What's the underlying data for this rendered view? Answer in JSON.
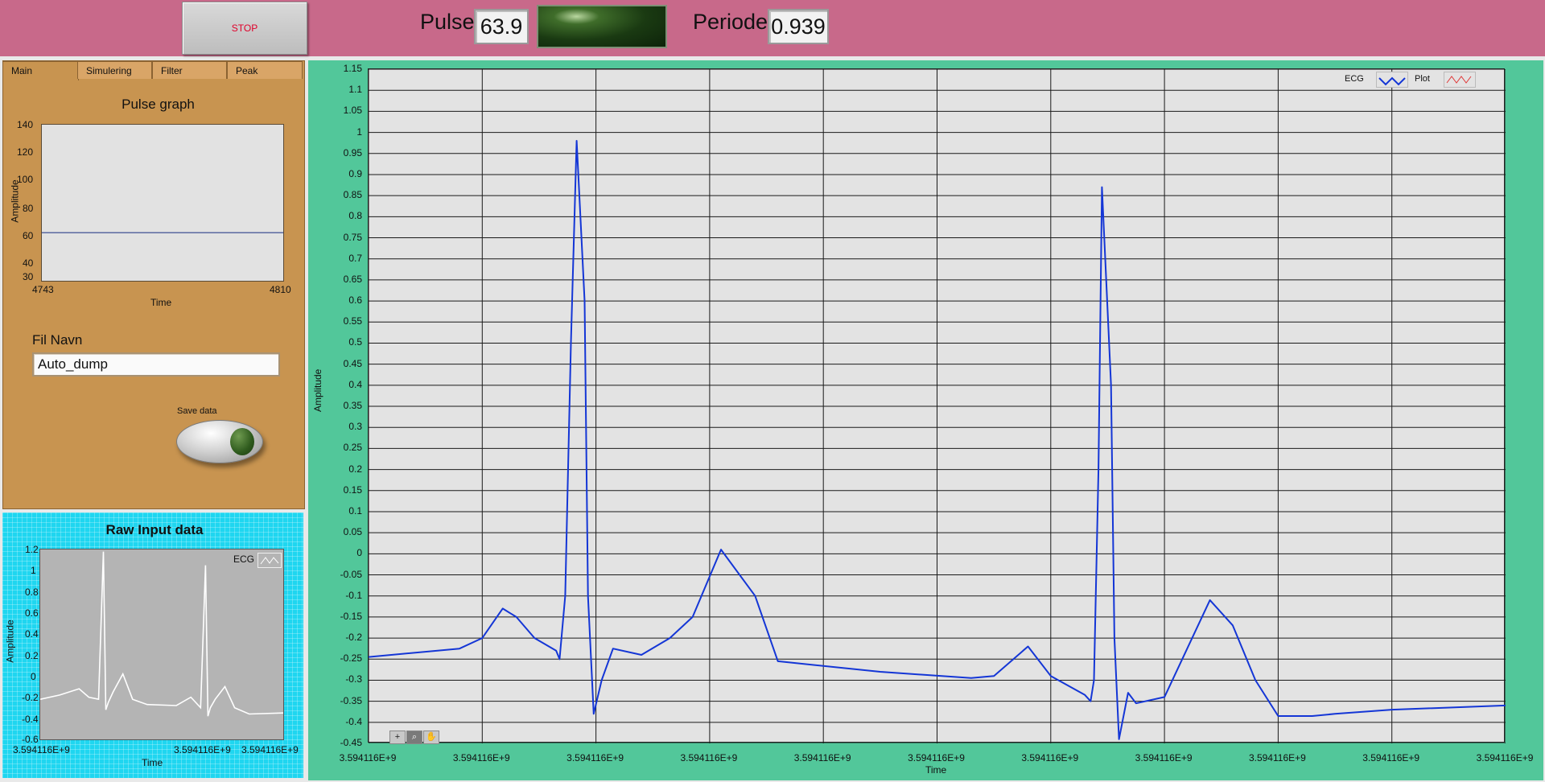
{
  "topbar": {
    "stop_label": "STOP",
    "pulse_label": "Pulse",
    "pulse_value": "63.9",
    "periode_label": "Periode",
    "periode_value": "0.939"
  },
  "tabs": [
    "Main",
    "Simulering",
    "Filter",
    "Peak"
  ],
  "pulse_graph": {
    "title": "Pulse graph",
    "y_label": "Amplitude",
    "x_label": "Time",
    "y_ticks": [
      "140",
      "120",
      "100",
      "80",
      "60",
      "40",
      "30"
    ],
    "x_ticks": [
      "4743",
      "4810"
    ]
  },
  "file": {
    "label": "Fil Navn",
    "value": "Auto_dump"
  },
  "save": {
    "label": "Save data"
  },
  "raw": {
    "title": "Raw Input data",
    "legend": "ECG",
    "y_label": "Amplitude",
    "x_label": "Time",
    "y_ticks": [
      "1.2",
      "1",
      "0.8",
      "0.6",
      "0.4",
      "0.2",
      "0",
      "-0.2",
      "-0.4",
      "-0.6"
    ],
    "x_ticks": [
      "3.594116E+9",
      "3.594116E+9",
      "3.594116E+9"
    ]
  },
  "main_plot": {
    "legend": [
      "ECG",
      "Plot"
    ],
    "y_label": "Amplitude",
    "x_label": "Time",
    "x_tick_label": "3.594116E+9",
    "tools": [
      "+",
      "⌕",
      "✋"
    ]
  },
  "colors": {
    "topbar": "#c8698a",
    "left_panel": "#c89450",
    "raw_panel": "#1fd6f0",
    "main_panel": "#52c79a",
    "ecg_trace": "#1436d6",
    "stop_text": "#e0002a"
  },
  "chart_data": [
    {
      "type": "line",
      "name_ref": "pulse-graph",
      "title": "Pulse graph",
      "xlabel": "Time",
      "ylabel": "Amplitude",
      "xlim": [
        4743,
        4810
      ],
      "ylim": [
        30,
        140
      ],
      "x": [
        4743,
        4760,
        4777,
        4793,
        4810
      ],
      "y": [
        63.9,
        63.9,
        63.9,
        63.9,
        63.9
      ]
    },
    {
      "type": "line",
      "name_ref": "raw-input",
      "title": "Raw Input data",
      "xlabel": "Time",
      "ylabel": "Amplitude",
      "legend": [
        "ECG"
      ],
      "ylim": [
        -0.6,
        1.2
      ],
      "x": [
        0,
        0.08,
        0.16,
        0.2,
        0.24,
        0.26,
        0.27,
        0.28,
        0.3,
        0.34,
        0.38,
        0.44,
        0.56,
        0.62,
        0.66,
        0.68,
        0.69,
        0.7,
        0.72,
        0.76,
        0.8,
        0.86,
        1.0
      ],
      "y": [
        -0.22,
        -0.18,
        -0.12,
        -0.2,
        -0.22,
        1.18,
        -0.32,
        -0.25,
        -0.15,
        0.02,
        -0.22,
        -0.27,
        -0.28,
        -0.2,
        -0.3,
        1.05,
        -0.38,
        -0.3,
        -0.22,
        -0.1,
        -0.3,
        -0.36,
        -0.35
      ]
    },
    {
      "type": "line",
      "name_ref": "ecg-main",
      "xlabel": "Time",
      "ylabel": "Amplitude",
      "legend": [
        "ECG",
        "Plot"
      ],
      "ylim": [
        -0.45,
        1.15
      ],
      "y_ticks": [
        1.15,
        1.1,
        1.05,
        1,
        0.95,
        0.9,
        0.85,
        0.8,
        0.75,
        0.7,
        0.65,
        0.6,
        0.55,
        0.5,
        0.45,
        0.4,
        0.35,
        0.3,
        0.25,
        0.2,
        0.15,
        0.1,
        0.05,
        0,
        -0.05,
        -0.1,
        -0.15,
        -0.2,
        -0.25,
        -0.3,
        -0.35,
        -0.4,
        -0.45
      ],
      "x_ticks_count": 11,
      "x": [
        0,
        0.08,
        0.1,
        0.118,
        0.13,
        0.146,
        0.165,
        0.168,
        0.173,
        0.178,
        0.183,
        0.19,
        0.193,
        0.198,
        0.205,
        0.215,
        0.24,
        0.265,
        0.285,
        0.31,
        0.34,
        0.36,
        0.45,
        0.53,
        0.55,
        0.58,
        0.6,
        0.63,
        0.635,
        0.638,
        0.642,
        0.645,
        0.653,
        0.656,
        0.66,
        0.668,
        0.675,
        0.7,
        0.74,
        0.76,
        0.78,
        0.8,
        0.83,
        0.85,
        0.9,
        1.0
      ],
      "y": [
        -0.245,
        -0.225,
        -0.2,
        -0.13,
        -0.15,
        -0.2,
        -0.23,
        -0.25,
        -0.1,
        0.5,
        0.98,
        0.6,
        -0.1,
        -0.38,
        -0.3,
        -0.225,
        -0.24,
        -0.2,
        -0.15,
        0.01,
        -0.1,
        -0.255,
        -0.28,
        -0.295,
        -0.29,
        -0.22,
        -0.29,
        -0.335,
        -0.35,
        -0.3,
        0.2,
        0.87,
        0.4,
        -0.2,
        -0.44,
        -0.33,
        -0.355,
        -0.34,
        -0.11,
        -0.17,
        -0.3,
        -0.385,
        -0.385,
        -0.38,
        -0.37,
        -0.36
      ]
    }
  ]
}
